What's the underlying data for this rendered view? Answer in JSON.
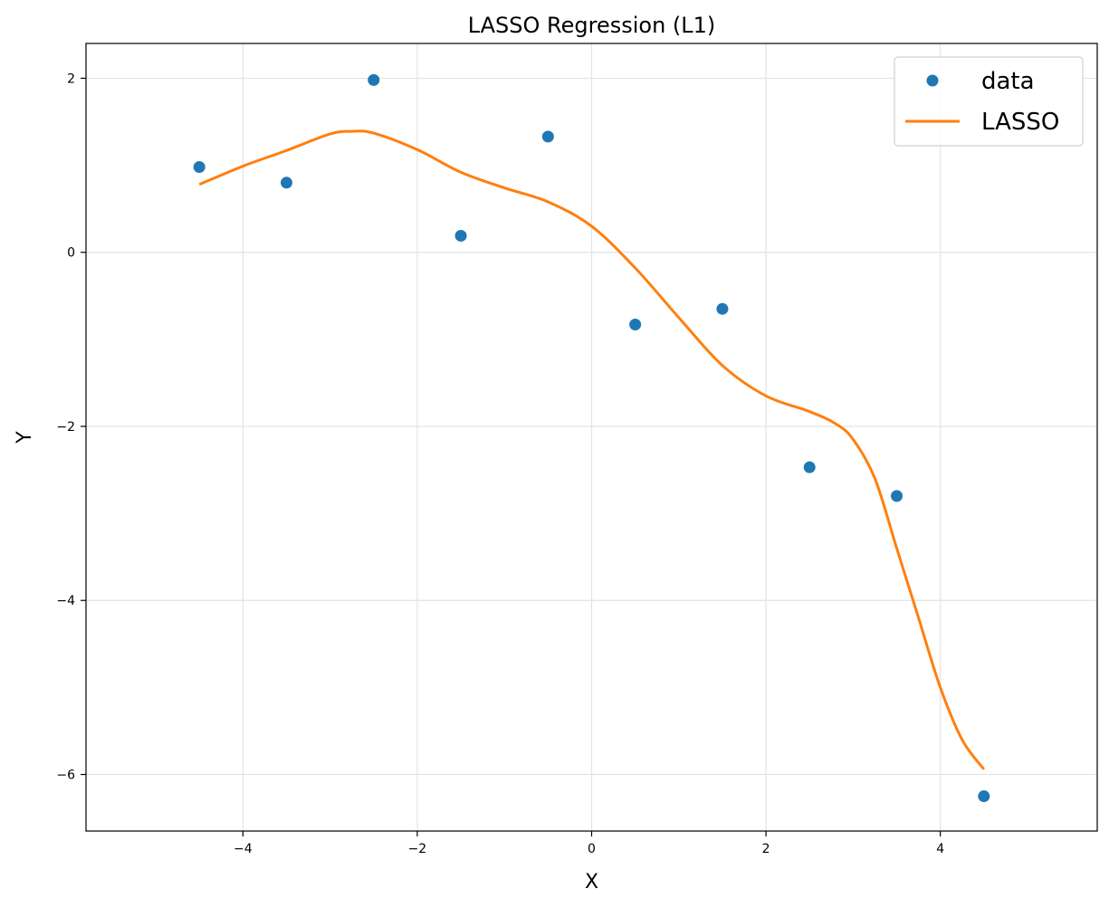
{
  "chart_data": {
    "type": "scatter",
    "title": "LASSO Regression (L1)",
    "xlabel": "X",
    "ylabel": "Y",
    "xlim": [
      -5.8,
      5.8
    ],
    "ylim": [
      -6.65,
      2.4
    ],
    "xticks": [
      -4,
      -2,
      0,
      2,
      4
    ],
    "yticks": [
      -6,
      -4,
      -2,
      0,
      2
    ],
    "xtick_labels": [
      "−4",
      "−2",
      "0",
      "2",
      "4"
    ],
    "ytick_labels": [
      "−6",
      "−4",
      "−2",
      "0",
      "2"
    ],
    "grid": true,
    "legend_position": "top-right",
    "series": [
      {
        "name": "data",
        "kind": "scatter",
        "color": "#1f77b4",
        "x": [
          -4.5,
          -3.5,
          -2.5,
          -1.5,
          -0.5,
          0.5,
          1.5,
          2.5,
          3.5,
          4.5
        ],
        "y": [
          0.98,
          0.8,
          1.98,
          0.19,
          1.33,
          -0.83,
          -0.65,
          -2.47,
          -2.8,
          -6.25
        ]
      },
      {
        "name": "LASSO",
        "kind": "line",
        "color": "#ff7f0e",
        "x": [
          -4.5,
          -4.0,
          -3.5,
          -3.0,
          -2.75,
          -2.5,
          -2.0,
          -1.5,
          -1.0,
          -0.5,
          0.0,
          0.5,
          1.0,
          1.5,
          2.0,
          2.5,
          2.8,
          3.0,
          3.25,
          3.5,
          3.75,
          4.0,
          4.25,
          4.5
        ],
        "y": [
          0.78,
          0.99,
          1.17,
          1.36,
          1.39,
          1.37,
          1.18,
          0.92,
          0.74,
          0.58,
          0.3,
          -0.18,
          -0.75,
          -1.3,
          -1.65,
          -1.83,
          -1.97,
          -2.15,
          -2.6,
          -3.4,
          -4.2,
          -5.0,
          -5.6,
          -5.94
        ]
      }
    ]
  }
}
